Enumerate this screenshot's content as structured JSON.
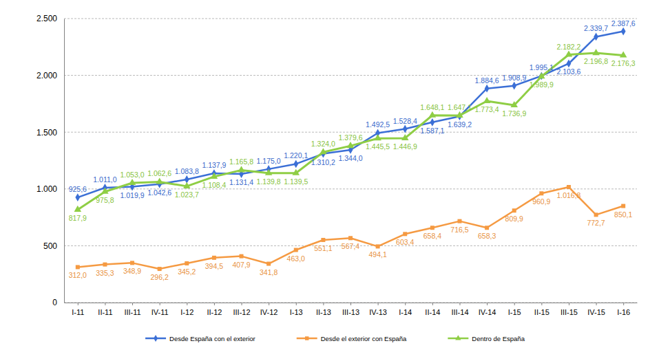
{
  "chart_data": {
    "type": "line",
    "categories": [
      "I-11",
      "II-11",
      "III-11",
      "IV-11",
      "I-12",
      "II-12",
      "III-12",
      "IV-12",
      "I-13",
      "II-13",
      "III-13",
      "IV-13",
      "I-14",
      "II-14",
      "III-14",
      "IV-14",
      "I-15",
      "II-15",
      "III-15",
      "IV-15",
      "I-16"
    ],
    "series": [
      {
        "name": "Desde España con el exterior",
        "color": "#3b6fd6",
        "marker": "diamond",
        "values": [
          925.6,
          1011.0,
          1019.9,
          1042.6,
          1083.8,
          1137.9,
          1131.4,
          1175.0,
          1220.1,
          1310.2,
          1344.0,
          1492.5,
          1528.4,
          1587.1,
          1639.2,
          1884.6,
          1908.9,
          1995.1,
          2103.6,
          2339.7,
          2387.6
        ],
        "value_labels": [
          "925,6",
          "1.011,0",
          "1.019,9",
          "1.042,6",
          "1.083,8",
          "1.137,9",
          "1.131,4",
          "1.175,0",
          "1.220,1",
          "1.310,2",
          "1.344,0",
          "1.492,5",
          "1.528,4",
          "1.587,1",
          "1.639,2",
          "1.884,6",
          "1.908,9",
          "1.995,1",
          "2.103,6",
          "2.339,7",
          "2.387,6"
        ]
      },
      {
        "name": "Desde el exterior con España",
        "color": "#f59a42",
        "marker": "square",
        "values": [
          312.0,
          335.3,
          348.9,
          296.2,
          345.2,
          394.5,
          407.9,
          341.8,
          463.0,
          551.1,
          567.4,
          494.1,
          603.4,
          658.4,
          716.5,
          658.3,
          809.9,
          960.9,
          1016.8,
          772.7,
          850.1
        ],
        "value_labels": [
          "312,0",
          "335,3",
          "348,9",
          "296,2",
          "345,2",
          "394,5",
          "407,9",
          "341,8",
          "463,0",
          "551,1",
          "567,4",
          "494,1",
          "603,4",
          "658,4",
          "716,5",
          "658,3",
          "809,9",
          "960,9",
          "1.016,8",
          "772,7",
          "850,1"
        ]
      },
      {
        "name": "Dentro de España",
        "color": "#8fce45",
        "marker": "triangle",
        "values": [
          817.9,
          975.8,
          1053.0,
          1062.6,
          1023.7,
          1108.4,
          1165.8,
          1139.8,
          1139.5,
          1324.0,
          1379.6,
          1445.5,
          1446.9,
          1648.1,
          1647.1,
          1773.4,
          1736.9,
          1989.9,
          2182.2,
          2196.8,
          2176.3
        ],
        "value_labels": [
          "817,9",
          "975,8",
          "1.053,0",
          "1.062,6",
          "1.023,7",
          "1.108,4",
          "1.165,8",
          "1.139,8",
          "1.139,5",
          "1.324,0",
          "1.379,6",
          "1.445,5",
          "1.446,9",
          "1.648,1",
          "1.647,1",
          "1.773,4",
          "1.736,9",
          "1.989,9",
          "2.182,2",
          "2.196,8",
          "2.176,3"
        ]
      }
    ],
    "ylim": [
      0,
      2500
    ],
    "yticks": [
      0,
      500,
      {
        "value": 1000,
        "label": "1.000"
      },
      {
        "value": 1500,
        "label": "1.500"
      },
      {
        "value": 2000,
        "label": "2.000"
      },
      {
        "value": 2500,
        "label": "2.500"
      }
    ],
    "grid": true,
    "legend": "bottom",
    "data_labels": true
  }
}
